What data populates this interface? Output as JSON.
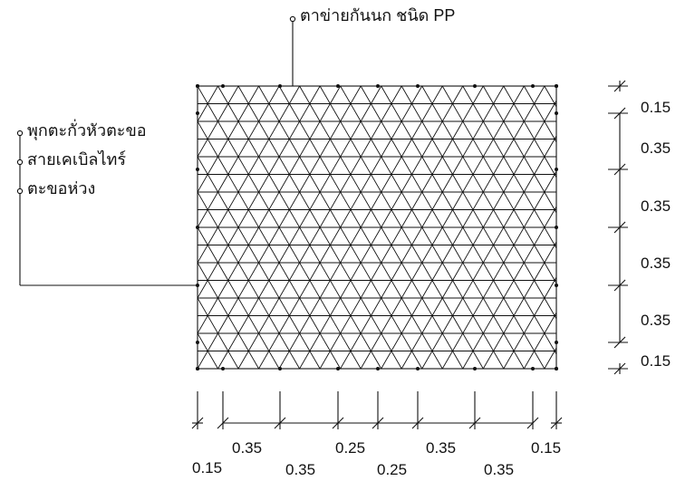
{
  "callouts": {
    "top": "ตาข่ายกันนก ชนิด PP",
    "left": [
      "พุกตะกั่วหัวตะขอ",
      "สายเคเบิลไทร์",
      "ตะขอห่วง"
    ]
  },
  "vertical_dimensions": [
    "0.15",
    "0.35",
    "0.35",
    "0.35",
    "0.35",
    "0.15"
  ],
  "horizontal_dimensions": [
    "0.15",
    "0.35",
    "0.35",
    "0.25",
    "0.25",
    "0.35",
    "0.35",
    "0.15"
  ]
}
